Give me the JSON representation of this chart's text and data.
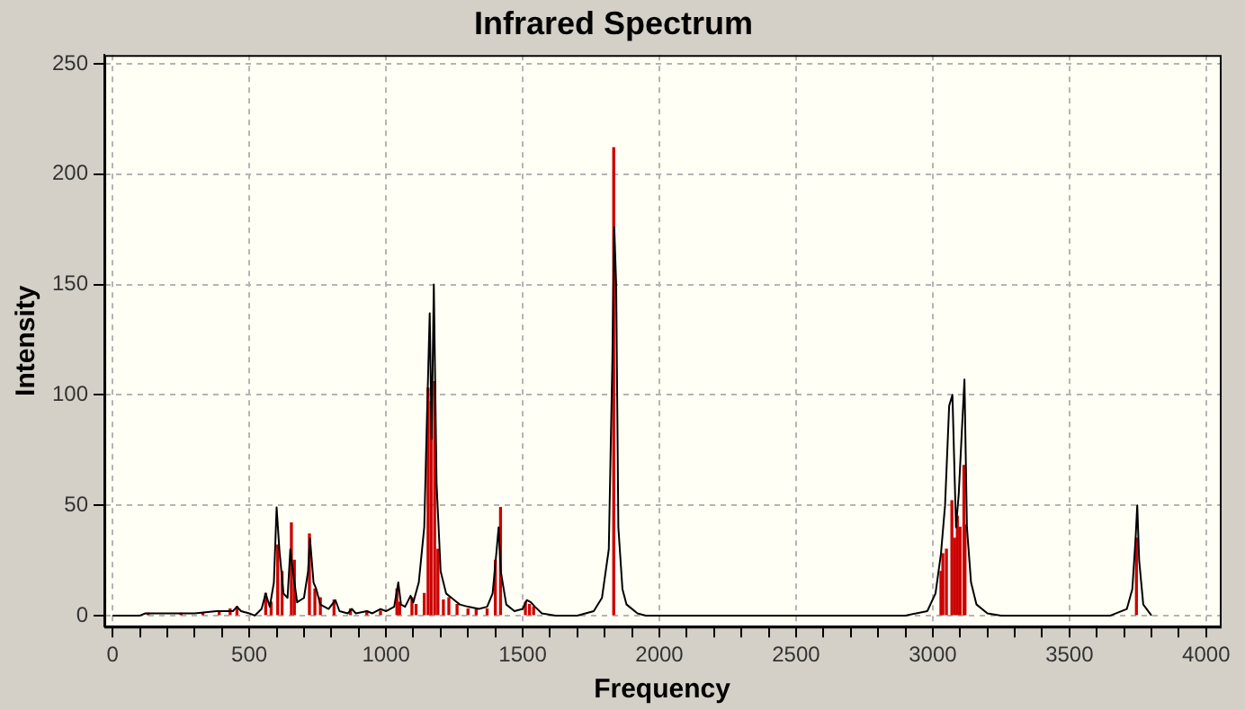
{
  "chart_data": {
    "type": "line",
    "title": "Infrared Spectrum",
    "xlabel": "Frequency",
    "ylabel": "Intensity",
    "xlim": [
      -30,
      4050
    ],
    "ylim": [
      -5,
      254
    ],
    "xticks": [
      0,
      {
        "value": 100,
        "label": null
      },
      {
        "value": 200,
        "label": null
      },
      {
        "value": 300,
        "label": null
      },
      {
        "value": 400,
        "label": null
      },
      500,
      {
        "value": 600,
        "label": null
      },
      {
        "value": 700,
        "label": null
      },
      {
        "value": 800,
        "label": null
      },
      {
        "value": 900,
        "label": null
      },
      1000,
      {
        "value": 1100,
        "label": null
      },
      {
        "value": 1200,
        "label": null
      },
      {
        "value": 1300,
        "label": null
      },
      {
        "value": 1400,
        "label": null
      },
      1500,
      {
        "value": 1600,
        "label": null
      },
      {
        "value": 1700,
        "label": null
      },
      {
        "value": 1800,
        "label": null
      },
      {
        "value": 1900,
        "label": null
      },
      2000,
      {
        "value": 2100,
        "label": null
      },
      {
        "value": 2200,
        "label": null
      },
      {
        "value": 2300,
        "label": null
      },
      {
        "value": 2400,
        "label": null
      },
      2500,
      {
        "value": 2600,
        "label": null
      },
      {
        "value": 2700,
        "label": null
      },
      {
        "value": 2800,
        "label": null
      },
      {
        "value": 2900,
        "label": null
      },
      3000,
      {
        "value": 3100,
        "label": null
      },
      {
        "value": 3200,
        "label": null
      },
      {
        "value": 3300,
        "label": null
      },
      {
        "value": 3400,
        "label": null
      },
      3500,
      {
        "value": 3600,
        "label": null
      },
      {
        "value": 3700,
        "label": null
      },
      {
        "value": 3800,
        "label": null
      },
      {
        "value": 3900,
        "label": null
      },
      4000
    ],
    "yticks": [
      0,
      50,
      100,
      150,
      200,
      250
    ],
    "grid": true,
    "legend": false,
    "marker": "none",
    "line_style": "solid",
    "series": [
      {
        "color": "#000000",
        "x": [
          0,
          100,
          120,
          300,
          380,
          440,
          455,
          470,
          500,
          520,
          545,
          560,
          575,
          590,
          600,
          610,
          625,
          640,
          650,
          660,
          675,
          700,
          715,
          722,
          735,
          745,
          760,
          790,
          815,
          830,
          860,
          875,
          890,
          930,
          950,
          980,
          1000,
          1030,
          1045,
          1055,
          1070,
          1090,
          1100,
          1120,
          1140,
          1150,
          1160,
          1167,
          1175,
          1185,
          1200,
          1220,
          1240,
          1270,
          1300,
          1340,
          1370,
          1390,
          1405,
          1412,
          1420,
          1440,
          1470,
          1500,
          1515,
          1530,
          1545,
          1570,
          1620,
          1700,
          1760,
          1790,
          1815,
          1828,
          1835,
          1842,
          1850,
          1865,
          1880,
          1920,
          1950,
          2900,
          2980,
          3010,
          3030,
          3045,
          3060,
          3072,
          3085,
          3095,
          3105,
          3116,
          3125,
          3140,
          3160,
          3200,
          3250,
          3650,
          3710,
          3730,
          3742,
          3748,
          3755,
          3770,
          3800
        ],
        "values": [
          0,
          0,
          1,
          1,
          2,
          2,
          4,
          2,
          1,
          0,
          3,
          10,
          4,
          15,
          49,
          30,
          10,
          8,
          30,
          20,
          6,
          8,
          20,
          35,
          15,
          12,
          5,
          3,
          7,
          2,
          1,
          3,
          1,
          2,
          1,
          3,
          2,
          4,
          15,
          5,
          4,
          9,
          6,
          15,
          40,
          90,
          137,
          80,
          150,
          60,
          20,
          10,
          8,
          5,
          4,
          3,
          4,
          10,
          30,
          40,
          20,
          5,
          2,
          3,
          7,
          6,
          4,
          1,
          0,
          0,
          2,
          8,
          30,
          115,
          176,
          150,
          40,
          12,
          5,
          1,
          0,
          0,
          2,
          10,
          28,
          50,
          95,
          100,
          40,
          55,
          80,
          107,
          40,
          15,
          5,
          1,
          0,
          0,
          3,
          12,
          35,
          50,
          25,
          5,
          0
        ]
      },
      {
        "type": "bar",
        "color": "#cc0000",
        "x": [
          130,
          250,
          330,
          390,
          430,
          455,
          560,
          580,
          604,
          620,
          654,
          665,
          720,
          740,
          760,
          810,
          870,
          930,
          980,
          1040,
          1050,
          1095,
          1110,
          1140,
          1154,
          1165,
          1178,
          1190,
          1210,
          1230,
          1260,
          1300,
          1330,
          1370,
          1400,
          1419,
          1510,
          1525,
          1540,
          1833,
          3030,
          3037,
          3050,
          3070,
          3080,
          3090,
          3100,
          3114,
          3118,
          3745
        ],
        "values": [
          1,
          1,
          1,
          2,
          3,
          4,
          10,
          6,
          32,
          20,
          42,
          25,
          37,
          12,
          8,
          7,
          3,
          2,
          2,
          12,
          6,
          8,
          5,
          10,
          103,
          97,
          106,
          30,
          7,
          8,
          5,
          3,
          3,
          3,
          25,
          49,
          6,
          5,
          4,
          212,
          20,
          28,
          30,
          52,
          35,
          45,
          40,
          68,
          41,
          35
        ]
      }
    ]
  }
}
